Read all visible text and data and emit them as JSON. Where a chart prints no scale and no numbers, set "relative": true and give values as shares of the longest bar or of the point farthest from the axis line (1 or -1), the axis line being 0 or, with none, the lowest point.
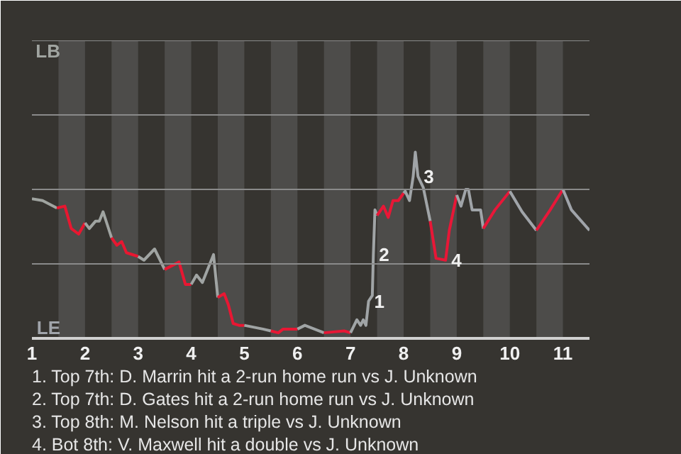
{
  "chart_data": {
    "type": "line",
    "relative": true,
    "series": [
      {
        "color": "#a0a4a0",
        "x": [
          1.0,
          1.2,
          1.47
        ],
        "values": [
          0.75,
          0.74,
          0.7
        ]
      },
      {
        "color": "#e81730",
        "x": [
          1.47,
          1.62,
          1.74,
          1.88,
          2.0
        ],
        "values": [
          0.7,
          0.71,
          0.59,
          0.56,
          0.62
        ]
      },
      {
        "color": "#a0a4a1",
        "x": [
          2.0,
          2.08,
          2.2,
          2.27,
          2.34,
          2.5
        ],
        "values": [
          0.62,
          0.59,
          0.63,
          0.63,
          0.68,
          0.54
        ]
      },
      {
        "color": "#e81731",
        "x": [
          2.5,
          2.6,
          2.69,
          2.78,
          3.0
        ],
        "values": [
          0.54,
          0.5,
          0.52,
          0.46,
          0.44
        ]
      },
      {
        "color": "#a0a4a2",
        "x": [
          3.0,
          3.11,
          3.31,
          3.5
        ],
        "values": [
          0.44,
          0.42,
          0.48,
          0.37
        ]
      },
      {
        "color": "#e81732",
        "x": [
          3.5,
          3.77,
          3.89,
          4.0
        ],
        "values": [
          0.37,
          0.41,
          0.29,
          0.29
        ]
      },
      {
        "color": "#a0a4a3",
        "x": [
          4.0,
          4.1,
          4.21,
          4.42,
          4.5
        ],
        "values": [
          0.29,
          0.34,
          0.3,
          0.45,
          0.22
        ]
      },
      {
        "color": "#e81733",
        "x": [
          4.5,
          4.62,
          4.7,
          4.79,
          4.9,
          5.0
        ],
        "values": [
          0.22,
          0.24,
          0.18,
          0.08,
          0.07,
          0.07
        ]
      },
      {
        "color": "#a0a4a4",
        "x": [
          5.0,
          5.35,
          5.5
        ],
        "values": [
          0.07,
          0.05,
          0.04
        ]
      },
      {
        "color": "#e81734",
        "x": [
          5.5,
          5.64,
          5.73,
          6.0
        ],
        "values": [
          0.04,
          0.03,
          0.05,
          0.05
        ]
      },
      {
        "color": "#a0a4a5",
        "x": [
          6.0,
          6.14,
          6.5
        ],
        "values": [
          0.05,
          0.07,
          0.03
        ]
      },
      {
        "color": "#e81735",
        "x": [
          6.5,
          6.88,
          7.0
        ],
        "values": [
          0.03,
          0.04,
          0.03
        ]
      },
      {
        "color": "#a0a4a6",
        "x": [
          7.0,
          7.12,
          7.19,
          7.24,
          7.29,
          7.34,
          7.41,
          7.43,
          7.46,
          7.5
        ],
        "values": [
          0.03,
          0.1,
          0.07,
          0.1,
          0.07,
          0.2,
          0.23,
          0.45,
          0.69,
          0.66
        ]
      },
      {
        "color": "#e81736",
        "x": [
          7.5,
          7.62,
          7.71,
          7.8,
          7.9,
          8.0
        ],
        "values": [
          0.66,
          0.71,
          0.65,
          0.74,
          0.74,
          0.78
        ]
      },
      {
        "color": "#a0a4a7",
        "x": [
          8.0,
          8.03,
          8.11,
          8.18,
          8.22,
          8.27,
          8.37,
          8.5
        ],
        "values": [
          0.78,
          0.79,
          0.74,
          0.87,
          1,
          0.87,
          0.81,
          0.63
        ]
      },
      {
        "color": "#e81737",
        "x": [
          8.5,
          8.61,
          8.79,
          8.86,
          9.0
        ],
        "values": [
          0.63,
          0.43,
          0.42,
          0.58,
          0.77
        ]
      },
      {
        "color": "#a0a4a8",
        "x": [
          9.0,
          9.08,
          9.17,
          9.22,
          9.29,
          9.45,
          9.5
        ],
        "values": [
          0.77,
          0.71,
          0.8,
          0.8,
          0.69,
          0.69,
          0.59
        ]
      },
      {
        "color": "#e81738",
        "x": [
          9.5,
          9.72,
          10.0
        ],
        "values": [
          0.59,
          0.69,
          0.79
        ]
      },
      {
        "color": "#a0a4a9",
        "x": [
          10.0,
          10.23,
          10.5
        ],
        "values": [
          0.79,
          0.68,
          0.58
        ]
      },
      {
        "color": "#e81739",
        "x": [
          10.5,
          10.76,
          11.0
        ],
        "values": [
          0.58,
          0.69,
          0.8
        ]
      },
      {
        "color": "#a0a4aa",
        "x": [
          11.0,
          11.16,
          11.5
        ],
        "values": [
          0.8,
          0.69,
          0.58
        ]
      }
    ],
    "xlim": [
      1,
      11.5
    ],
    "xticks": [
      1,
      2,
      3,
      4,
      5,
      6,
      7,
      8,
      9,
      10,
      11
    ],
    "ref_lines": [
      {
        "axis": "y",
        "value": 0.4,
        "color": "#8a8a8a"
      },
      {
        "axis": "y",
        "value": 0.8,
        "color": "#8a8a8a"
      },
      {
        "axis": "y",
        "value": 1.2,
        "color": "#8a8a8a"
      },
      {
        "axis": "y",
        "value": 1.6,
        "color": "#8a8a8a"
      }
    ],
    "bands": [
      {
        "axis": "x",
        "from": 1.5,
        "to": 2,
        "color": "#4d4c4a"
      },
      {
        "axis": "x",
        "from": 2.5,
        "to": 3,
        "color": "#4d4c4a"
      },
      {
        "axis": "x",
        "from": 3.5,
        "to": 4,
        "color": "#4d4c4a"
      },
      {
        "axis": "x",
        "from": 4.5,
        "to": 5,
        "color": "#4d4c4a"
      },
      {
        "axis": "x",
        "from": 5.5,
        "to": 6,
        "color": "#4d4c4a"
      },
      {
        "axis": "x",
        "from": 6.5,
        "to": 7,
        "color": "#4d4c4a"
      },
      {
        "axis": "x",
        "from": 7.5,
        "to": 8,
        "color": "#4d4c4a"
      },
      {
        "axis": "x",
        "from": 8.5,
        "to": 9,
        "color": "#4d4c4a"
      },
      {
        "axis": "x",
        "from": 9.5,
        "to": 10,
        "color": "#4d4c4a"
      },
      {
        "axis": "x",
        "from": 10.5,
        "to": 11,
        "color": "#4d4c4a"
      }
    ],
    "annotations": [
      {
        "text": "1",
        "x": 7.34,
        "y": 0.2
      },
      {
        "text": "2",
        "x": 7.43,
        "y": 0.45
      },
      {
        "text": "3",
        "x": 8.27,
        "y": 0.87
      },
      {
        "text": "4",
        "x": 8.79,
        "y": 0.42
      },
      "LB",
      "LE",
      "1. Top 7th: D. Marrin hit a 2-run home run vs J. Unknown",
      "2. Top 7th: D. Gates hit a 2-run home run vs J. Unknown",
      "3. Top 8th: M. Nelson hit a triple vs J. Unknown",
      "4. Bot 8th: V. Maxwell hit a double vs J. Unknown"
    ]
  }
}
